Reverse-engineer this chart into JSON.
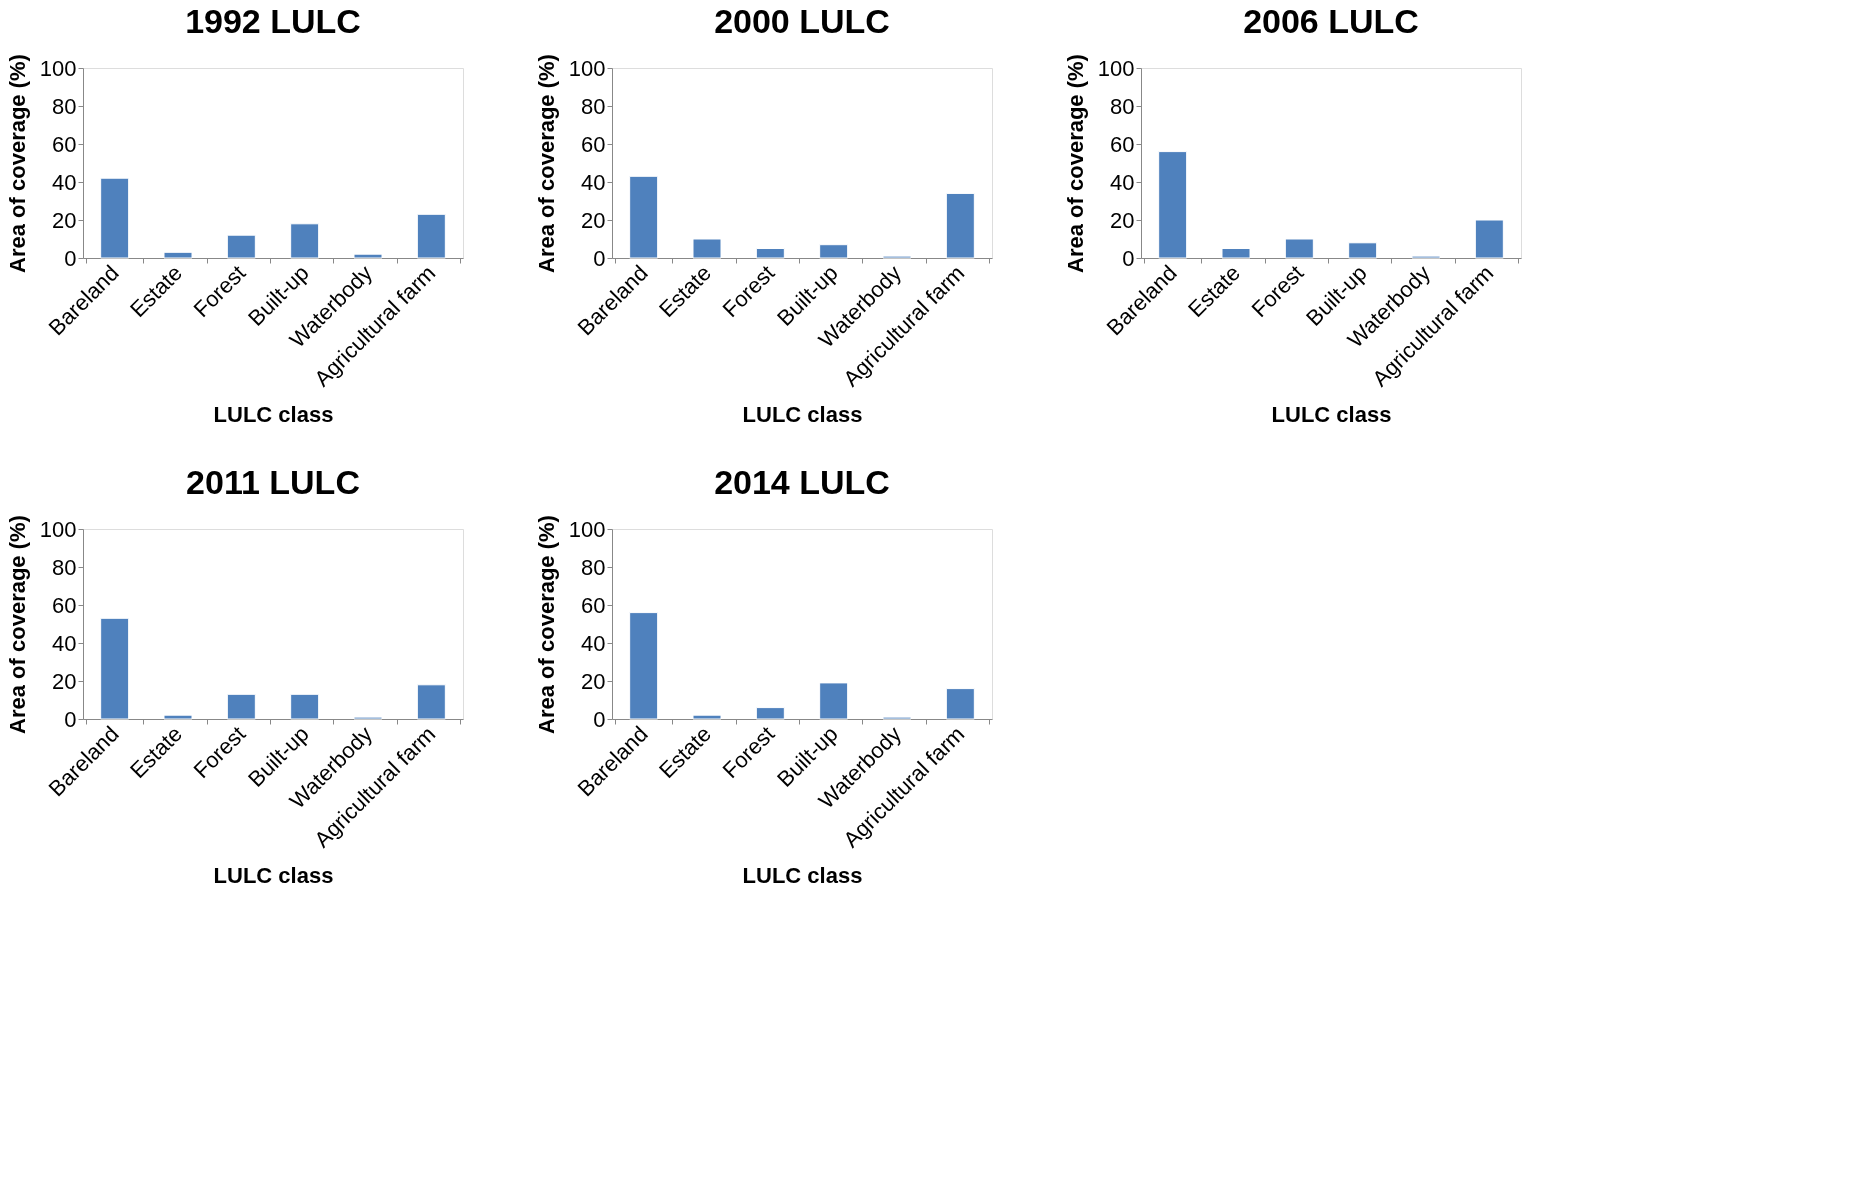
{
  "chart_data": [
    {
      "type": "bar",
      "title": "1992 LULC",
      "xlabel": "LULC class",
      "ylabel": "Area of coverage (%)",
      "categories": [
        "Bareland",
        "Estate",
        "Forest",
        "Built-up",
        "Waterbody",
        "Agricultural farm"
      ],
      "values": [
        42,
        3,
        12,
        18,
        2,
        23
      ],
      "color": "#4f81bd",
      "ylim": [
        0,
        100
      ],
      "yticks": [
        0,
        20,
        40,
        60,
        80,
        100
      ],
      "grid": false
    },
    {
      "type": "bar",
      "title": "2000 LULC",
      "xlabel": "LULC class",
      "ylabel": "Area of coverage (%)",
      "categories": [
        "Bareland",
        "Estate",
        "Forest",
        "Built-up",
        "Waterbody",
        "Agricultural farm"
      ],
      "values": [
        43,
        10,
        5,
        7,
        1,
        34
      ],
      "color": "#4f81bd",
      "ylim": [
        0,
        100
      ],
      "yticks": [
        0,
        20,
        40,
        60,
        80,
        100
      ],
      "grid": false
    },
    {
      "type": "bar",
      "title": "2006 LULC",
      "xlabel": "LULC class",
      "ylabel": "Area of coverage (%)",
      "categories": [
        "Bareland",
        "Estate",
        "Forest",
        "Built-up",
        "Waterbody",
        "Agricultural farm"
      ],
      "values": [
        56,
        5,
        10,
        8,
        1,
        20
      ],
      "color": "#4f81bd",
      "ylim": [
        0,
        100
      ],
      "yticks": [
        0,
        20,
        40,
        60,
        80,
        100
      ],
      "grid": false
    },
    {
      "type": "bar",
      "title": "2011 LULC",
      "xlabel": "LULC class",
      "ylabel": "Area of coverage (%)",
      "categories": [
        "Bareland",
        "Estate",
        "Forest",
        "Built-up",
        "Waterbody",
        "Agricultural farm"
      ],
      "values": [
        53,
        2,
        13,
        13,
        1,
        18
      ],
      "color": "#4f81bd",
      "ylim": [
        0,
        100
      ],
      "yticks": [
        0,
        20,
        40,
        60,
        80,
        100
      ],
      "grid": false
    },
    {
      "type": "bar",
      "title": "2014 LULC",
      "xlabel": "LULC class",
      "ylabel": "Area of coverage (%)",
      "categories": [
        "Bareland",
        "Estate",
        "Forest",
        "Built-up",
        "Waterbody",
        "Agricultural farm"
      ],
      "values": [
        56,
        2,
        6,
        19,
        1,
        16
      ],
      "color": "#4f81bd",
      "ylim": [
        0,
        100
      ],
      "yticks": [
        0,
        20,
        40,
        60,
        80,
        100
      ],
      "grid": false
    }
  ]
}
